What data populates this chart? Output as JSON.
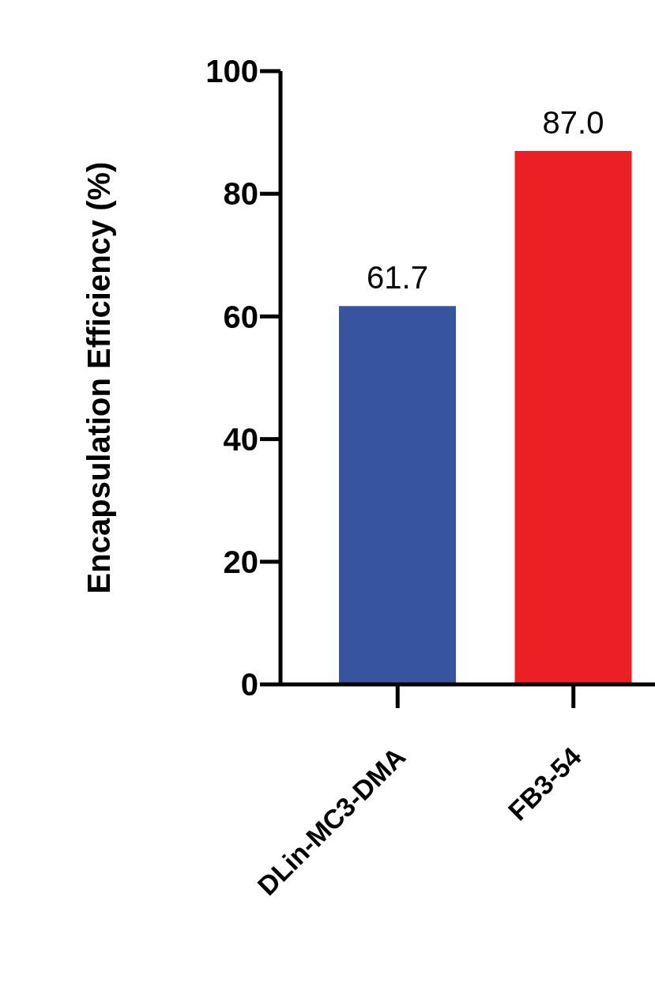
{
  "chart_data": {
    "type": "bar",
    "ylabel": "Encapsulation Efficiency (%)",
    "categories": [
      "DLin-MC3-DMA",
      "FB3-54"
    ],
    "values": [
      61.7,
      87.0
    ],
    "colors": [
      "#3654a0",
      "#ec2024"
    ],
    "value_labels": [
      "61.7",
      "87.0"
    ],
    "ylim": [
      0,
      100
    ],
    "yticks": [
      0,
      20,
      40,
      60,
      80,
      100
    ]
  }
}
